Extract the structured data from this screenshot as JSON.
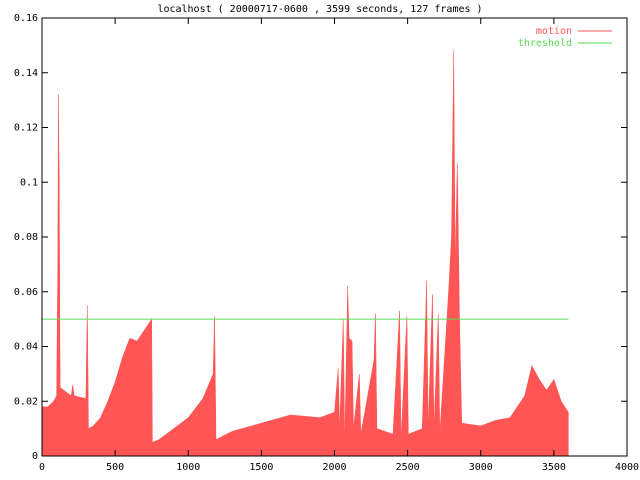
{
  "chart_data": {
    "type": "area",
    "title": "localhost ( 20000717-0600 , 3599 seconds, 127 frames )",
    "xlim": [
      0,
      4000
    ],
    "xticks": [
      0,
      500,
      1000,
      1500,
      2000,
      2500,
      3000,
      3500,
      4000
    ],
    "ylim": [
      0,
      0.16
    ],
    "yticks": [
      0,
      0.02,
      0.04,
      0.06,
      0.08,
      0.1,
      0.12,
      0.14,
      0.16
    ],
    "legend": "top-right",
    "series": [
      {
        "name": "motion",
        "type": "area",
        "color": "#ff5555",
        "x": [
          0,
          40,
          80,
          100,
          108,
          112,
          118,
          124,
          150,
          200,
          210,
          220,
          300,
          310,
          318,
          350,
          400,
          450,
          500,
          550,
          600,
          650,
          700,
          750,
          755,
          800,
          900,
          1000,
          1100,
          1170,
          1180,
          1190,
          1300,
          1500,
          1700,
          1900,
          2000,
          2025,
          2035,
          2060,
          2070,
          2090,
          2100,
          2120,
          2130,
          2170,
          2180,
          2270,
          2280,
          2290,
          2400,
          2445,
          2455,
          2495,
          2505,
          2600,
          2630,
          2640,
          2670,
          2680,
          2710,
          2720,
          2780,
          2800,
          2815,
          2825,
          2840,
          2855,
          2870,
          3000,
          3100,
          3200,
          3300,
          3350,
          3400,
          3450,
          3500,
          3550,
          3599
        ],
        "values": [
          0.018,
          0.018,
          0.02,
          0.022,
          0.07,
          0.132,
          0.1,
          0.025,
          0.024,
          0.022,
          0.026,
          0.022,
          0.021,
          0.055,
          0.01,
          0.011,
          0.014,
          0.02,
          0.027,
          0.036,
          0.043,
          0.042,
          0.046,
          0.05,
          0.005,
          0.006,
          0.01,
          0.014,
          0.021,
          0.03,
          0.051,
          0.006,
          0.009,
          0.012,
          0.015,
          0.014,
          0.016,
          0.032,
          0.01,
          0.05,
          0.005,
          0.062,
          0.043,
          0.042,
          0.01,
          0.03,
          0.008,
          0.035,
          0.052,
          0.01,
          0.008,
          0.053,
          0.006,
          0.051,
          0.008,
          0.01,
          0.064,
          0.01,
          0.059,
          0.01,
          0.052,
          0.008,
          0.06,
          0.08,
          0.148,
          0.07,
          0.107,
          0.05,
          0.012,
          0.011,
          0.013,
          0.014,
          0.022,
          0.033,
          0.028,
          0.024,
          0.028,
          0.02,
          0.016
        ]
      },
      {
        "name": "threshold",
        "type": "line",
        "color": "#55dd55",
        "x": [
          0,
          3599
        ],
        "values": [
          0.05,
          0.05
        ]
      }
    ]
  }
}
